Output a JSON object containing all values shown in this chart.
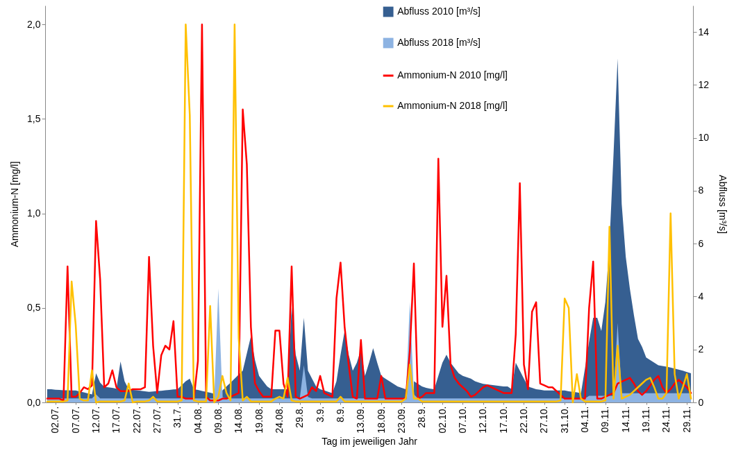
{
  "chart_data": {
    "type": "line",
    "xlabel": "Tag im jeweiligen Jahr",
    "ylabel": "Ammonium-N [mg/l]",
    "y2label": "Abfluss [m³/s]",
    "categories": [
      null,
      null,
      "02.07.",
      null,
      null,
      null,
      null,
      "07.07.",
      null,
      null,
      null,
      null,
      "12.07.",
      null,
      null,
      null,
      null,
      "17.07.",
      null,
      null,
      null,
      null,
      "22.07.",
      null,
      null,
      null,
      null,
      "27.07.",
      null,
      null,
      null,
      null,
      "31.7.",
      null,
      null,
      null,
      null,
      "04.08.",
      null,
      null,
      null,
      null,
      "09.08.",
      null,
      null,
      null,
      null,
      "14.08.",
      null,
      null,
      null,
      null,
      "19.08.",
      null,
      null,
      null,
      null,
      "24.08.",
      null,
      null,
      null,
      null,
      "29.8.",
      null,
      null,
      null,
      null,
      "3.9.",
      null,
      null,
      null,
      null,
      "8.9.",
      null,
      null,
      null,
      null,
      "13.09.",
      null,
      null,
      null,
      null,
      "18.09.",
      null,
      null,
      null,
      null,
      "23.09.",
      null,
      null,
      null,
      null,
      "28.9.",
      null,
      null,
      null,
      null,
      "02.10.",
      null,
      null,
      null,
      null,
      "07.10.",
      null,
      null,
      null,
      null,
      "12.10.",
      null,
      null,
      null,
      null,
      "17.10.",
      null,
      null,
      null,
      null,
      "22.10.",
      null,
      null,
      null,
      null,
      "27.10.",
      null,
      null,
      null,
      null,
      "31.10.",
      null,
      null,
      null,
      null,
      "04.11.",
      null,
      null,
      null,
      null,
      "09.11.",
      null,
      null,
      null,
      null,
      "14.11.",
      null,
      null,
      null,
      null,
      "19.11.",
      null,
      null,
      null,
      null,
      "24.11.",
      null,
      null,
      null,
      null,
      "29.11.",
      null
    ],
    "ylim": [
      0,
      2.1
    ],
    "yticks": [
      {
        "value": 0,
        "label": "0,0"
      },
      {
        "value": 0.5,
        "label": "0,5"
      },
      {
        "value": 1,
        "label": "1,0"
      },
      {
        "value": 1.5,
        "label": "1,5"
      },
      {
        "value": 2,
        "label": "2,0"
      }
    ],
    "y2lim": [
      0,
      15
    ],
    "y2ticks": [
      0,
      2,
      4,
      6,
      8,
      10,
      12,
      14
    ],
    "grid": false,
    "legend": "top right",
    "series": [
      {
        "name": "Abfluss 2010 [m³/s]",
        "type": "area",
        "axis": "y2",
        "color": "#365f91",
        "values": [
          0.5,
          0.5,
          0.48,
          0.47,
          0.46,
          0.46,
          0.45,
          0.45,
          0.41,
          0.38,
          0.34,
          0.3,
          1.1,
          0.75,
          0.59,
          0.57,
          0.55,
          0.52,
          1.55,
          0.8,
          0.49,
          0.47,
          0.46,
          0.44,
          0.42,
          0.4,
          0.41,
          0.43,
          0.44,
          0.46,
          0.47,
          0.49,
          0.5,
          0.65,
          0.8,
          0.9,
          0.5,
          0.47,
          0.43,
          0.4,
          0.37,
          0.33,
          null,
          0.45,
          0.6,
          0.75,
          0.9,
          1.05,
          1.2,
          1.85,
          2.5,
          1.6,
          1.0,
          0.8,
          0.6,
          0.5,
          0.5,
          0.5,
          0.5,
          0.5,
          3.6,
          1.8,
          1.2,
          3.2,
          1.2,
          0.9,
          0.6,
          0.5,
          0.45,
          0.4,
          0.35,
          0.8,
          1.8,
          2.7,
          1.8,
          1.2,
          1.5,
          2.0,
          1.0,
          1.5,
          2.05,
          1.5,
          1.0,
          0.9,
          0.8,
          0.7,
          0.6,
          0.55,
          0.5,
          null,
          0.8,
          0.7,
          0.6,
          0.55,
          0.52,
          0.5,
          1.0,
          1.5,
          1.8,
          1.5,
          1.3,
          1.1,
          1.0,
          0.95,
          0.9,
          0.8,
          0.75,
          0.7,
          0.68,
          0.66,
          0.64,
          0.62,
          0.6,
          0.6,
          0.5,
          1.5,
          1.2,
          0.9,
          0.6,
          0.55,
          0.5,
          0.48,
          0.45,
          0.45,
          0.45,
          0.45,
          0.45,
          0.45,
          0.42,
          0.4,
          0.38,
          0.35,
          1.3,
          2.3,
          3.2,
          3.2,
          2.7,
          3.8,
          6.0,
          9.4,
          13.0,
          7.5,
          5.5,
          4.3,
          3.3,
          2.4,
          2.1,
          1.7,
          1.6,
          1.5,
          1.4,
          1.38,
          1.35,
          1.32,
          1.28,
          1.24,
          1.2,
          1.15,
          1.1
        ]
      },
      {
        "name": "Abfluss 2018 [m³/s]",
        "type": "area",
        "axis": "y2",
        "color": "#8db3e2",
        "values": [
          0.15,
          0.15,
          0.15,
          0.15,
          0.15,
          0.15,
          0.15,
          0.15,
          0.15,
          0.15,
          0.15,
          0.15,
          0.3,
          0.15,
          0.15,
          0.15,
          0.15,
          0.15,
          0.15,
          0.15,
          0.15,
          0.15,
          0.15,
          0.15,
          0.15,
          0.15,
          0.15,
          0.15,
          0.15,
          0.15,
          0.15,
          0.15,
          0.15,
          0.15,
          0.15,
          0.15,
          0.15,
          0.15,
          0.15,
          0.15,
          0.15,
          0.15,
          4.3,
          0.2,
          0.15,
          0.15,
          0.15,
          0.15,
          0.15,
          0.15,
          0.15,
          0.15,
          0.15,
          0.15,
          0.15,
          0.15,
          0.15,
          0.15,
          0.15,
          0.15,
          0.15,
          0.15,
          0.15,
          1.4,
          0.2,
          0.15,
          0.15,
          0.15,
          0.15,
          0.15,
          0.15,
          0.15,
          0.15,
          0.15,
          0.15,
          0.15,
          0.15,
          0.15,
          0.15,
          0.15,
          0.15,
          0.15,
          0.15,
          0.15,
          0.15,
          0.15,
          0.15,
          0.15,
          0.15,
          3.8,
          0.3,
          0.15,
          0.15,
          0.15,
          0.15,
          0.15,
          0.15,
          0.15,
          0.15,
          0.15,
          0.15,
          0.15,
          0.15,
          0.15,
          0.15,
          0.15,
          0.15,
          0.15,
          0.15,
          0.15,
          0.15,
          0.15,
          0.15,
          0.15,
          0.15,
          0.15,
          0.15,
          0.15,
          0.15,
          0.15,
          0.15,
          0.15,
          0.15,
          0.15,
          0.15,
          0.15,
          0.15,
          0.15,
          0.15,
          0.15,
          0.15,
          0.15,
          0.15,
          0.25,
          0.25,
          0.25,
          0.25,
          0.25,
          0.25,
          0.25,
          3.0,
          0.35,
          0.35,
          0.35,
          0.35,
          0.35,
          0.35,
          0.35,
          0.35,
          0.35,
          0.35,
          0.35,
          0.35,
          0.35,
          0.35,
          0.35,
          0.35,
          0.35,
          0.35
        ]
      },
      {
        "name": "Ammonium-N 2010 [mg/l]",
        "type": "line",
        "color": "#ff0000",
        "values": [
          0.02,
          0.02,
          0.02,
          0.02,
          0.01,
          0.72,
          0.03,
          0.03,
          0.05,
          0.08,
          0.07,
          0.09,
          0.96,
          0.65,
          0.08,
          0.1,
          0.17,
          0.08,
          0.06,
          0.06,
          0.06,
          0.07,
          0.07,
          0.07,
          0.08,
          0.77,
          0.3,
          0.05,
          0.25,
          0.3,
          0.28,
          0.43,
          0.03,
          0.03,
          0.02,
          0.02,
          0.02,
          0.22,
          2.0,
          0.03,
          0.01,
          0.01,
          0.01,
          0.02,
          0.02,
          0.03,
          0.04,
          0.05,
          1.55,
          1.26,
          0.4,
          0.1,
          0.06,
          0.03,
          0.03,
          0.03,
          0.38,
          0.38,
          0.1,
          0.03,
          0.72,
          0.03,
          0.02,
          0.03,
          0.04,
          0.08,
          0.06,
          0.14,
          0.05,
          0.04,
          0.03,
          0.55,
          0.74,
          0.4,
          0.2,
          0.03,
          0.02,
          0.33,
          0.02,
          0.02,
          0.02,
          0.02,
          0.14,
          0.02,
          0.02,
          0.02,
          0.02,
          0.02,
          0.02,
          0.27,
          0.735,
          0.02,
          0.03,
          0.05,
          0.05,
          0.05,
          1.29,
          0.4,
          0.67,
          0.2,
          0.13,
          0.1,
          0.08,
          0.06,
          0.03,
          0.04,
          0.06,
          0.08,
          0.09,
          0.08,
          0.07,
          0.06,
          0.05,
          0.05,
          0.05,
          0.36,
          1.16,
          0.2,
          0.07,
          0.48,
          0.53,
          0.1,
          0.09,
          0.08,
          0.08,
          0.06,
          0.04,
          0.02,
          0.02,
          0.02,
          0.02,
          0.02,
          0.02,
          0.5,
          0.745,
          0.02,
          0.02,
          0.03,
          0.04,
          0.05,
          0.1,
          0.11,
          0.12,
          0.13,
          0.1,
          0.06,
          0.04,
          0.06,
          0.09,
          0.12,
          0.14,
          0.08,
          0.05,
          0.07,
          0.1,
          0.12,
          0.1,
          0.08,
          0.05
        ]
      },
      {
        "name": "Ammonium-N 2018 [mg/l]",
        "type": "line",
        "color": "#ffc000",
        "values": [
          0.005,
          0.005,
          0.005,
          0.005,
          0.005,
          0.01,
          0.64,
          0.41,
          0.02,
          0.01,
          0.01,
          0.17,
          0.0,
          0.005,
          0.005,
          0.005,
          0.005,
          0.005,
          0.005,
          0.01,
          0.1,
          0.0,
          0.005,
          0.005,
          0.005,
          0.01,
          0.03,
          0.005,
          0.005,
          0.005,
          0.005,
          0.005,
          0.005,
          0.01,
          2.0,
          1.52,
          0.01,
          0.005,
          0.005,
          0.005,
          0.51,
          0.0,
          0.03,
          0.14,
          0.05,
          0.01,
          2.0,
          0.34,
          0.01,
          0.03,
          0.005,
          0.005,
          0.005,
          0.005,
          0.005,
          0.005,
          0.02,
          0.03,
          0.02,
          0.13,
          0.01,
          0.005,
          0.005,
          0.005,
          0.005,
          0.005,
          0.005,
          0.005,
          0.005,
          0.005,
          0.005,
          0.005,
          0.03,
          0.005,
          0.005,
          0.005,
          0.005,
          0.005,
          0.005,
          0.005,
          0.005,
          0.005,
          0.005,
          0.005,
          0.005,
          0.005,
          0.005,
          0.005,
          0.02,
          0.2,
          0.02,
          0.02,
          0.005,
          0.005,
          0.005,
          0.005,
          0.005,
          0.005,
          0.005,
          0.005,
          0.005,
          0.005,
          0.005,
          0.005,
          0.005,
          0.005,
          0.005,
          0.005,
          0.005,
          0.005,
          0.005,
          0.005,
          0.005,
          0.005,
          0.005,
          0.005,
          0.005,
          0.005,
          0.005,
          0.005,
          0.005,
          0.005,
          0.005,
          0.005,
          0.005,
          0.005,
          0.01,
          0.55,
          0.5,
          0.0,
          0.15,
          0.02,
          0.005,
          0.005,
          0.005,
          0.005,
          0.005,
          0.01,
          0.93,
          0.02,
          0.3,
          0.02,
          0.03,
          0.04,
          0.06,
          0.08,
          0.1,
          0.12,
          0.13,
          0.08,
          0.02,
          0.02,
          0.05,
          1.0,
          0.15,
          0.02,
          0.08,
          0.15,
          0.02
        ]
      }
    ]
  }
}
